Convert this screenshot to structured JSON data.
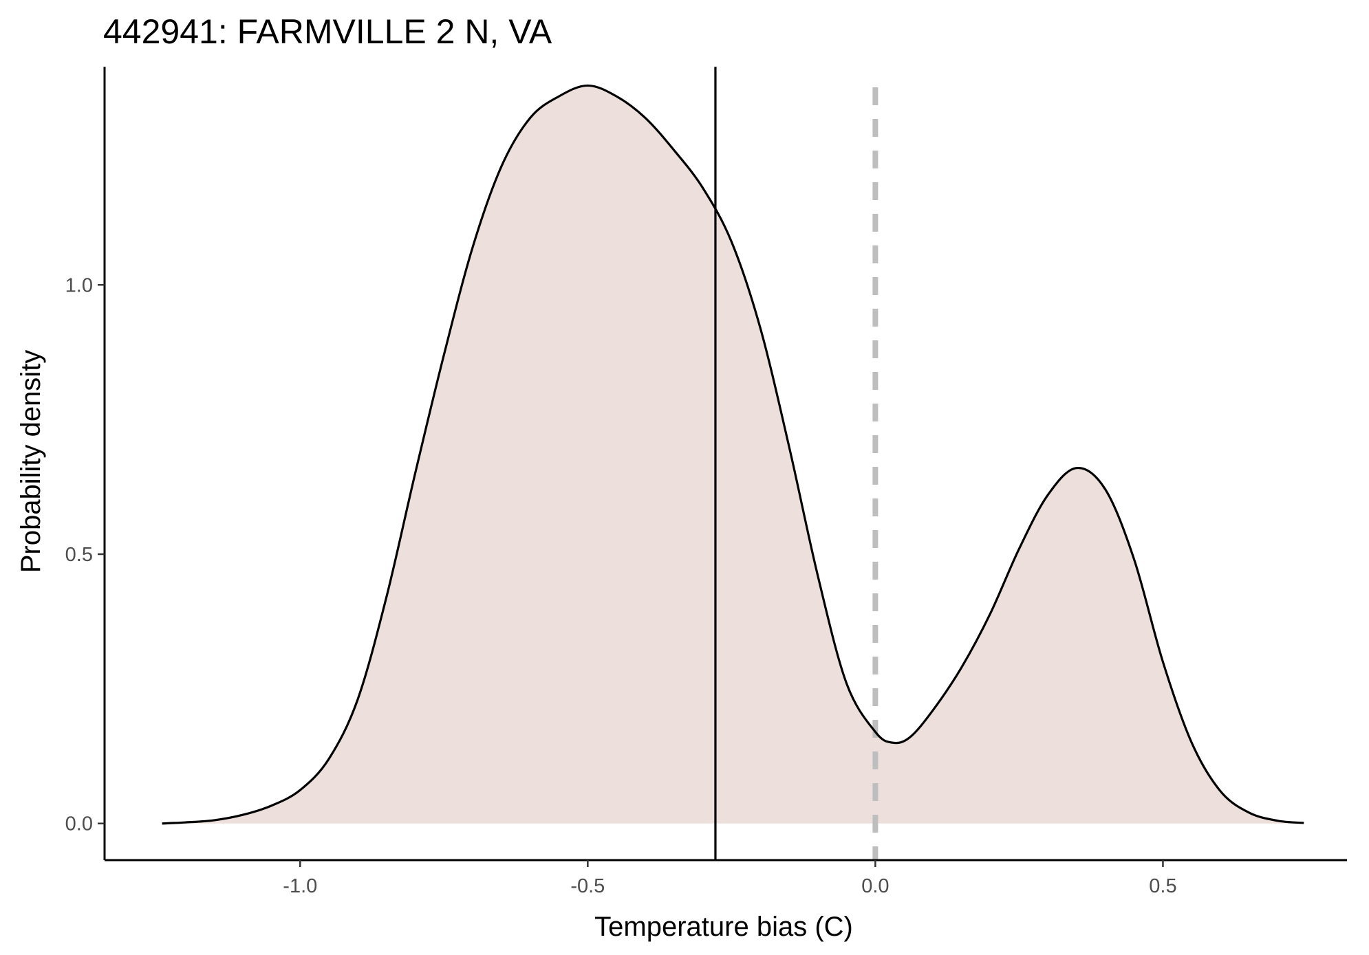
{
  "chart_data": {
    "type": "area",
    "title": "442941: FARMVILLE 2 N, VA",
    "xlabel": "Temperature bias (C)",
    "ylabel": "Probability density",
    "xlim": [
      -1.34,
      0.82
    ],
    "ylim": [
      -0.068,
      1.405
    ],
    "x_ticks": [
      -1.0,
      -0.5,
      0.0,
      0.5
    ],
    "x_tick_labels": [
      "-1.0",
      "-0.5",
      "0.0",
      "0.5"
    ],
    "y_ticks": [
      0.0,
      0.5,
      1.0
    ],
    "y_tick_labels": [
      "0.0",
      "0.5",
      "1.0"
    ],
    "grid": false,
    "legend": "none",
    "series": [
      {
        "x": [
          -1.24,
          -1.2,
          -1.15,
          -1.1,
          -1.05,
          -1.0,
          -0.95,
          -0.9,
          -0.85,
          -0.8,
          -0.75,
          -0.7,
          -0.65,
          -0.6,
          -0.55,
          -0.5,
          -0.45,
          -0.4,
          -0.35,
          -0.3,
          -0.25,
          -0.2,
          -0.15,
          -0.1,
          -0.05,
          0.0,
          0.03,
          0.06,
          0.1,
          0.15,
          0.2,
          0.25,
          0.3,
          0.35,
          0.4,
          0.45,
          0.5,
          0.55,
          0.6,
          0.65,
          0.7,
          0.745
        ],
        "values": [
          0.0,
          0.002,
          0.006,
          0.016,
          0.033,
          0.062,
          0.12,
          0.23,
          0.42,
          0.65,
          0.87,
          1.07,
          1.22,
          1.31,
          1.35,
          1.37,
          1.35,
          1.31,
          1.25,
          1.18,
          1.08,
          0.92,
          0.7,
          0.46,
          0.26,
          0.17,
          0.15,
          0.16,
          0.21,
          0.29,
          0.39,
          0.51,
          0.61,
          0.66,
          0.62,
          0.49,
          0.3,
          0.15,
          0.06,
          0.02,
          0.005,
          0.001
        ]
      }
    ],
    "reference_lines": [
      {
        "x": -0.278,
        "style": "solid"
      },
      {
        "x": 0.0,
        "style": "dashed"
      }
    ],
    "colors": {
      "fill": "#ede0dc",
      "curve": "#000000",
      "mean_line": "#000000",
      "zero_line": "#bebebe",
      "axis": "#000000",
      "tick_label": "#4d4d4d"
    }
  }
}
